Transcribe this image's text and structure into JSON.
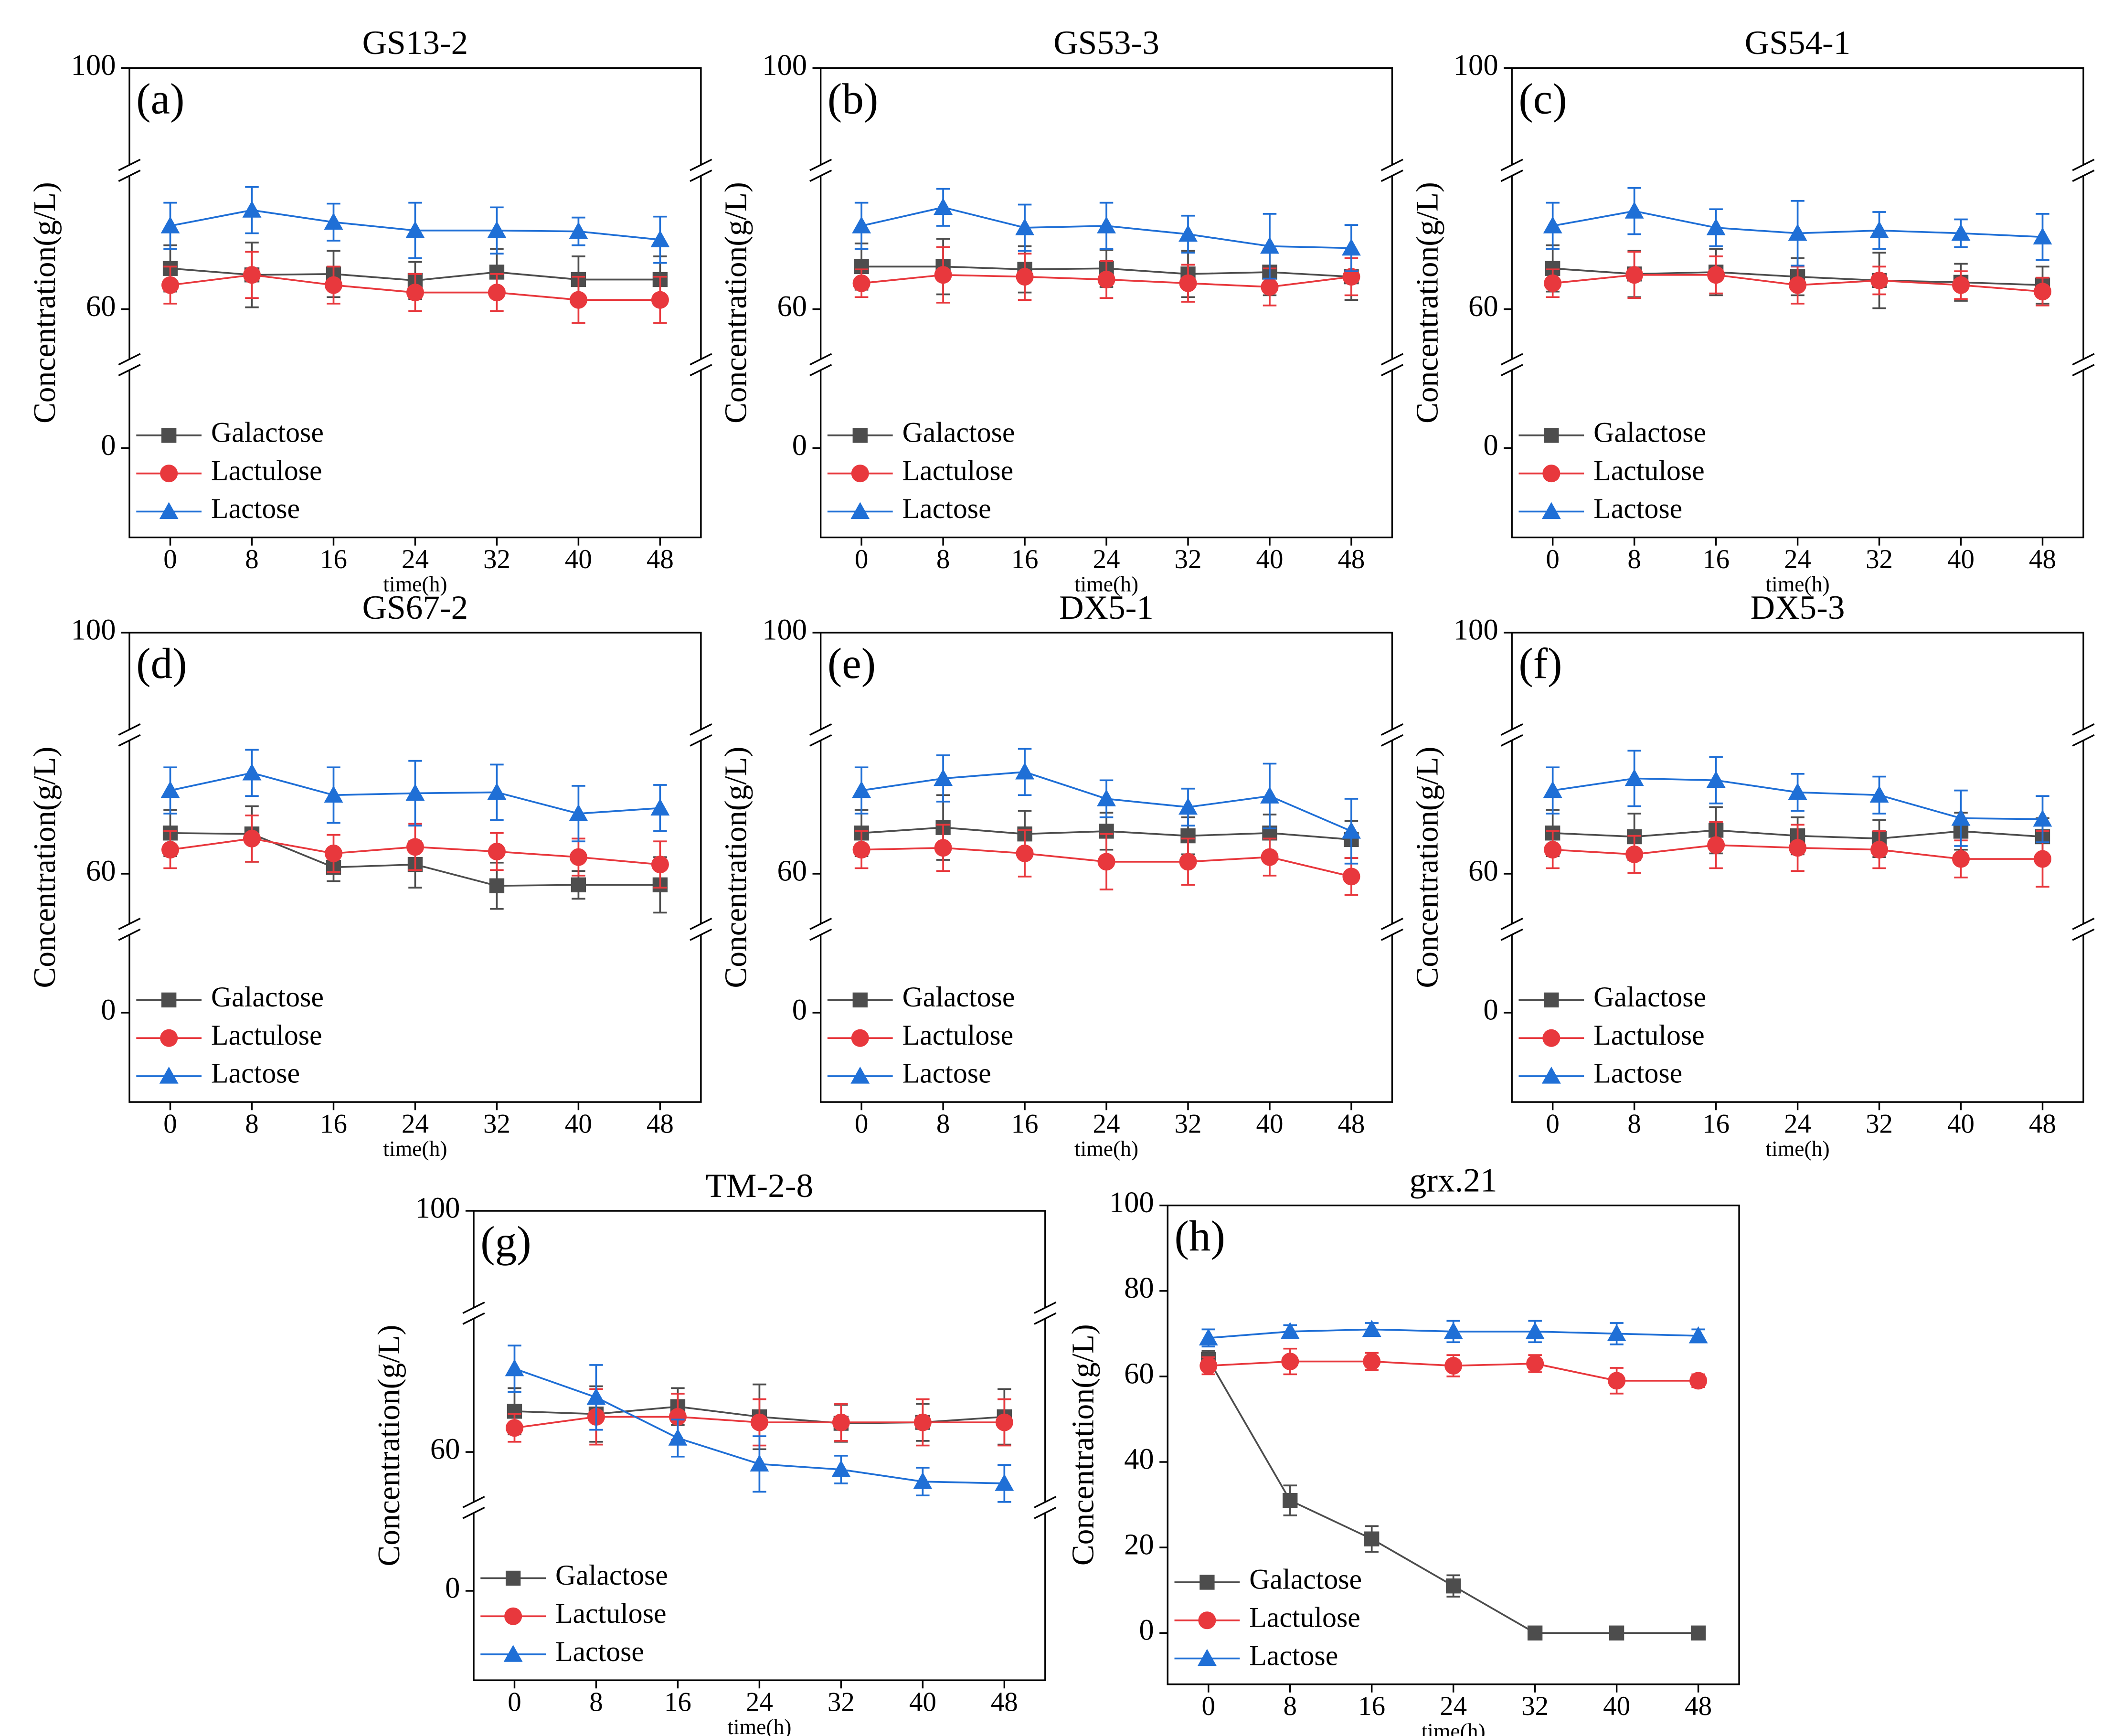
{
  "chart_data": [
    {
      "type": "line",
      "title": "GS13-2",
      "label": "(a)",
      "xlabel": "time(h)",
      "ylabel": "Concentration(g/L)",
      "x": [
        0,
        8,
        16,
        24,
        32,
        40,
        48
      ],
      "xlim": [
        -4,
        52
      ],
      "xticks": [
        0,
        8,
        16,
        24,
        32,
        40,
        48
      ],
      "y_segments": [
        {
          "ylim": [
            -30,
            28
          ],
          "yticks": [
            0
          ]
        },
        {
          "ylim": [
            54,
            75
          ],
          "yticks": [
            60
          ]
        },
        {
          "ylim": [
            90,
            100
          ],
          "yticks": [
            100
          ]
        }
      ],
      "series": [
        {
          "name": "Galactose",
          "color": "#4d4d4d",
          "marker": "square",
          "values": [
            64.4,
            63.7,
            63.8,
            63.1,
            64.0,
            63.2,
            63.2
          ],
          "errors": [
            2.5,
            3.5,
            2.5,
            2,
            2.5,
            2.5,
            2.5
          ]
        },
        {
          "name": "Lactulose",
          "color": "#e8383d",
          "marker": "circle",
          "values": [
            62.6,
            63.7,
            62.6,
            61.8,
            61.8,
            61.0,
            61.0
          ],
          "errors": [
            2,
            2.5,
            2,
            2,
            2,
            2.5,
            2.5
          ]
        },
        {
          "name": "Lactose",
          "color": "#1f6fd6",
          "marker": "triangle",
          "values": [
            69.0,
            70.7,
            69.4,
            68.5,
            68.5,
            68.4,
            67.5
          ],
          "errors": [
            2.5,
            2.5,
            2,
            3,
            2.5,
            1.5,
            2.5
          ]
        }
      ]
    },
    {
      "type": "line",
      "title": "GS53-3",
      "label": "(b)",
      "xlabel": "time(h)",
      "ylabel": "Concentration(g/L)",
      "x": [
        0,
        8,
        16,
        24,
        32,
        40,
        48
      ],
      "xlim": [
        -4,
        52
      ],
      "xticks": [
        0,
        8,
        16,
        24,
        32,
        40,
        48
      ],
      "y_segments": [
        {
          "ylim": [
            -30,
            28
          ],
          "yticks": [
            0
          ]
        },
        {
          "ylim": [
            54,
            75
          ],
          "yticks": [
            60
          ]
        },
        {
          "ylim": [
            90,
            100
          ],
          "yticks": [
            100
          ]
        }
      ],
      "series": [
        {
          "name": "Galactose",
          "color": "#4d4d4d",
          "marker": "square",
          "values": [
            64.6,
            64.6,
            64.3,
            64.4,
            63.8,
            64.0,
            63.5
          ],
          "errors": [
            2.5,
            3,
            2.5,
            2,
            2.5,
            2.5,
            2.5
          ]
        },
        {
          "name": "Lactulose",
          "color": "#e8383d",
          "marker": "circle",
          "values": [
            62.8,
            63.7,
            63.5,
            63.2,
            62.8,
            62.4,
            63.5
          ],
          "errors": [
            1.5,
            3,
            2.5,
            2,
            2,
            2,
            2
          ]
        },
        {
          "name": "Lactose",
          "color": "#1f6fd6",
          "marker": "triangle",
          "values": [
            69.0,
            71.0,
            68.8,
            69.0,
            68.1,
            66.8,
            66.6
          ],
          "errors": [
            2.5,
            2,
            2.5,
            2.5,
            2,
            3.5,
            2.5
          ]
        }
      ]
    },
    {
      "type": "line",
      "title": "GS54-1",
      "label": "(c)",
      "xlabel": "time(h)",
      "ylabel": "Concentration(g/L)",
      "x": [
        0,
        8,
        16,
        24,
        32,
        40,
        48
      ],
      "xlim": [
        -4,
        52
      ],
      "xticks": [
        0,
        8,
        16,
        24,
        32,
        40,
        48
      ],
      "y_segments": [
        {
          "ylim": [
            -30,
            28
          ],
          "yticks": [
            0
          ]
        },
        {
          "ylim": [
            54,
            75
          ],
          "yticks": [
            60
          ]
        },
        {
          "ylim": [
            90,
            100
          ],
          "yticks": [
            100
          ]
        }
      ],
      "series": [
        {
          "name": "Galactose",
          "color": "#4d4d4d",
          "marker": "square",
          "values": [
            64.4,
            63.8,
            64.0,
            63.5,
            63.1,
            62.9,
            62.6
          ],
          "errors": [
            2.5,
            2.5,
            2.5,
            2,
            3,
            2,
            2
          ]
        },
        {
          "name": "Lactulose",
          "color": "#e8383d",
          "marker": "circle",
          "values": [
            62.8,
            63.7,
            63.7,
            62.6,
            63.1,
            62.6,
            61.9
          ],
          "errors": [
            1.5,
            2.5,
            2,
            2,
            1.5,
            1.5,
            1.5
          ]
        },
        {
          "name": "Lactose",
          "color": "#1f6fd6",
          "marker": "triangle",
          "values": [
            69.0,
            70.6,
            68.8,
            68.2,
            68.5,
            68.2,
            67.8
          ],
          "errors": [
            2.5,
            2.5,
            2,
            3.5,
            2,
            1.5,
            2.5
          ]
        }
      ]
    },
    {
      "type": "line",
      "title": "GS67-2",
      "label": "(d)",
      "xlabel": "time(h)",
      "ylabel": "Concentration(g/L)",
      "x": [
        0,
        8,
        16,
        24,
        32,
        40,
        48
      ],
      "xlim": [
        -4,
        52
      ],
      "xticks": [
        0,
        8,
        16,
        24,
        32,
        40,
        48
      ],
      "y_segments": [
        {
          "ylim": [
            -30,
            28
          ],
          "yticks": [
            0
          ]
        },
        {
          "ylim": [
            54,
            75
          ],
          "yticks": [
            60
          ]
        },
        {
          "ylim": [
            90,
            100
          ],
          "yticks": [
            100
          ]
        }
      ],
      "series": [
        {
          "name": "Galactose",
          "color": "#4d4d4d",
          "marker": "square",
          "values": [
            64.4,
            64.3,
            60.7,
            61.0,
            58.7,
            58.8,
            58.8
          ],
          "errors": [
            2.5,
            3,
            1.5,
            2.5,
            2.5,
            1.5,
            3
          ]
        },
        {
          "name": "Lactulose",
          "color": "#e8383d",
          "marker": "circle",
          "values": [
            62.6,
            63.8,
            62.2,
            62.9,
            62.4,
            61.8,
            61.0
          ],
          "errors": [
            2,
            2.5,
            2,
            2.5,
            2,
            2,
            2.5
          ]
        },
        {
          "name": "Lactose",
          "color": "#1f6fd6",
          "marker": "triangle",
          "values": [
            69.0,
            70.9,
            68.5,
            68.7,
            68.8,
            66.5,
            67.1
          ],
          "errors": [
            2.5,
            2.5,
            3,
            3.5,
            3,
            3,
            2.5
          ]
        }
      ]
    },
    {
      "type": "line",
      "title": "DX5-1",
      "label": "(e)",
      "xlabel": "time(h)",
      "ylabel": "Concentration(g/L)",
      "x": [
        0,
        8,
        16,
        24,
        32,
        40,
        48
      ],
      "xlim": [
        -4,
        52
      ],
      "xticks": [
        0,
        8,
        16,
        24,
        32,
        40,
        48
      ],
      "y_segments": [
        {
          "ylim": [
            -30,
            28
          ],
          "yticks": [
            0
          ]
        },
        {
          "ylim": [
            54,
            75
          ],
          "yticks": [
            60
          ]
        },
        {
          "ylim": [
            90,
            100
          ],
          "yticks": [
            100
          ]
        }
      ],
      "series": [
        {
          "name": "Galactose",
          "color": "#4d4d4d",
          "marker": "square",
          "values": [
            64.4,
            65.0,
            64.3,
            64.6,
            64.1,
            64.4,
            63.7
          ],
          "errors": [
            2.5,
            3.5,
            2.5,
            2,
            2,
            2,
            2
          ]
        },
        {
          "name": "Lactulose",
          "color": "#e8383d",
          "marker": "circle",
          "values": [
            62.6,
            62.8,
            62.2,
            61.3,
            61.3,
            61.8,
            59.7
          ],
          "errors": [
            2,
            2.5,
            2.5,
            3,
            2.5,
            2,
            2
          ]
        },
        {
          "name": "Lactose",
          "color": "#1f6fd6",
          "marker": "triangle",
          "values": [
            69.0,
            70.3,
            71.0,
            68.1,
            67.2,
            68.4,
            64.6
          ],
          "errors": [
            2.5,
            2.5,
            2.5,
            2,
            2,
            3.5,
            3.5
          ]
        }
      ]
    },
    {
      "type": "line",
      "title": "DX5-3",
      "label": "(f)",
      "xlabel": "time(h)",
      "ylabel": "Concentration(g/L)",
      "x": [
        0,
        8,
        16,
        24,
        32,
        40,
        48
      ],
      "xlim": [
        -4,
        52
      ],
      "xticks": [
        0,
        8,
        16,
        24,
        32,
        40,
        48
      ],
      "y_segments": [
        {
          "ylim": [
            -30,
            28
          ],
          "yticks": [
            0
          ]
        },
        {
          "ylim": [
            54,
            75
          ],
          "yticks": [
            60
          ]
        },
        {
          "ylim": [
            90,
            100
          ],
          "yticks": [
            100
          ]
        }
      ],
      "series": [
        {
          "name": "Galactose",
          "color": "#4d4d4d",
          "marker": "square",
          "values": [
            64.4,
            64.0,
            64.7,
            64.1,
            63.8,
            64.6,
            64.0
          ],
          "errors": [
            2.5,
            2.5,
            2.5,
            2,
            2,
            2,
            2
          ]
        },
        {
          "name": "Lactulose",
          "color": "#e8383d",
          "marker": "circle",
          "values": [
            62.6,
            62.1,
            63.1,
            62.8,
            62.6,
            61.6,
            61.6
          ],
          "errors": [
            2,
            2,
            2.5,
            2.5,
            2,
            2,
            3
          ]
        },
        {
          "name": "Lactose",
          "color": "#1f6fd6",
          "marker": "triangle",
          "values": [
            69.0,
            70.3,
            70.1,
            68.8,
            68.5,
            66.0,
            65.9
          ],
          "errors": [
            2.5,
            3,
            2.5,
            2,
            2,
            3,
            2.5
          ]
        }
      ]
    },
    {
      "type": "line",
      "title": "TM-2-8",
      "label": "(g)",
      "xlabel": "time(h)",
      "ylabel": "Concentration(g/L)",
      "x": [
        0,
        8,
        16,
        24,
        32,
        40,
        48
      ],
      "xlim": [
        -4,
        52
      ],
      "xticks": [
        0,
        8,
        16,
        24,
        32,
        40,
        48
      ],
      "y_segments": [
        {
          "ylim": [
            -30,
            28
          ],
          "yticks": [
            0
          ]
        },
        {
          "ylim": [
            54,
            75
          ],
          "yticks": [
            60
          ]
        },
        {
          "ylim": [
            90,
            100
          ],
          "yticks": [
            100
          ]
        }
      ],
      "series": [
        {
          "name": "Galactose",
          "color": "#4d4d4d",
          "marker": "square",
          "values": [
            64.4,
            64.1,
            64.9,
            63.8,
            63.1,
            63.2,
            63.8
          ],
          "errors": [
            2.5,
            3,
            2,
            3.5,
            2,
            2,
            3
          ]
        },
        {
          "name": "Lactulose",
          "color": "#e8383d",
          "marker": "circle",
          "values": [
            62.6,
            63.8,
            63.8,
            63.2,
            63.2,
            63.2,
            63.2
          ],
          "errors": [
            1.5,
            3,
            2.5,
            2.5,
            2,
            2.5,
            2.5
          ]
        },
        {
          "name": "Lactose",
          "color": "#1f6fd6",
          "marker": "triangle",
          "values": [
            69.0,
            65.9,
            61.5,
            58.7,
            58.1,
            56.8,
            56.6
          ],
          "errors": [
            2.5,
            3.5,
            2,
            3,
            1.5,
            1.5,
            2
          ]
        }
      ]
    },
    {
      "type": "line",
      "title": "grx.21",
      "label": "(h)",
      "xlabel": "time(h)",
      "ylabel": "Concentration(g/L)",
      "x": [
        0,
        8,
        16,
        24,
        32,
        40,
        48
      ],
      "xlim": [
        -4,
        52
      ],
      "xticks": [
        0,
        8,
        16,
        24,
        32,
        40,
        48
      ],
      "ylim": [
        -12,
        100
      ],
      "yticks": [
        0,
        20,
        40,
        60,
        80,
        100
      ],
      "series": [
        {
          "name": "Galactose",
          "color": "#4d4d4d",
          "marker": "square",
          "values": [
            64,
            31,
            22,
            11,
            0,
            0,
            0
          ],
          "errors": [
            2,
            3.5,
            3,
            2.5,
            0.5,
            0.5,
            0.5
          ]
        },
        {
          "name": "Lactulose",
          "color": "#e8383d",
          "marker": "circle",
          "values": [
            62.5,
            63.5,
            63.5,
            62.5,
            63,
            59,
            59
          ],
          "errors": [
            2,
            3,
            2,
            2.5,
            2,
            3,
            1.5
          ]
        },
        {
          "name": "Lactose",
          "color": "#1f6fd6",
          "marker": "triangle",
          "values": [
            69,
            70.5,
            71,
            70.5,
            70.5,
            70,
            69.5
          ],
          "errors": [
            2,
            1.5,
            1.5,
            2.5,
            2.5,
            2.5,
            1.5
          ]
        }
      ]
    }
  ]
}
